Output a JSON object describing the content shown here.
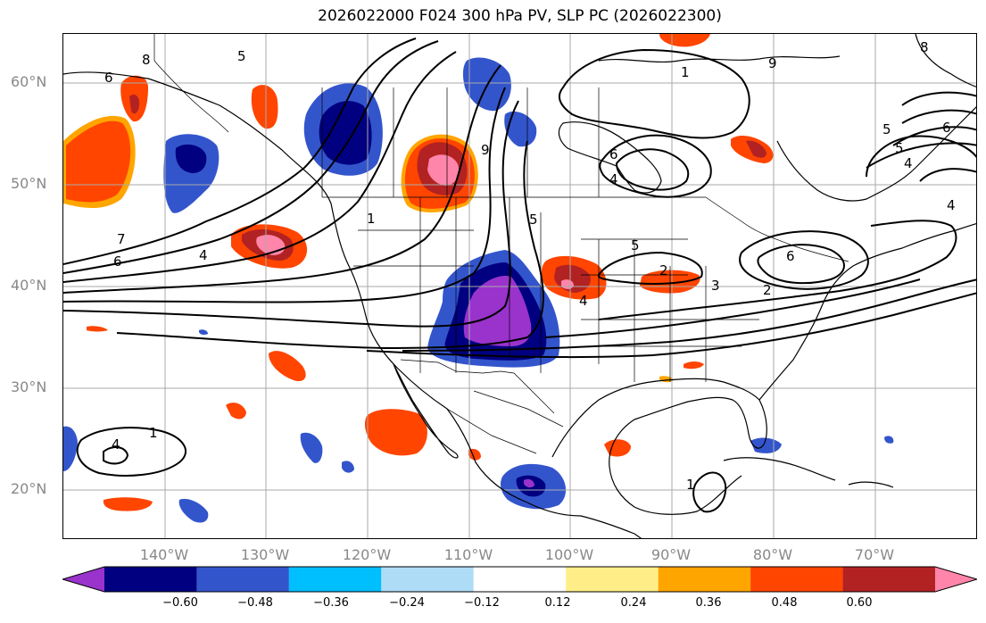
{
  "title": "2026022000 F024 300 hPa PV, SLP PC (2026022300)",
  "lat_labels": [
    "60°N",
    "50°N",
    "40°N",
    "30°N",
    "20°N"
  ],
  "lon_labels": [
    "140°W",
    "130°W",
    "120°W",
    "110°W",
    "100°W",
    "90°W",
    "80°W",
    "70°W"
  ],
  "colorbar": {
    "colors": [
      "#9933cc",
      "#000080",
      "#3355cc",
      "#00bfff",
      "#aedcf7",
      "#ffffff",
      "#ffee88",
      "#ffa500",
      "#ff4500",
      "#b22222",
      "#ff85aa"
    ],
    "ticks": [
      "−0.60",
      "−0.48",
      "−0.36",
      "−0.24",
      "−0.12",
      "0.12",
      "0.24",
      "0.36",
      "0.48",
      "0.60"
    ]
  },
  "contour_labels": [
    "5",
    "6",
    "8",
    "7",
    "6",
    "4",
    "1",
    "9",
    "6",
    "4",
    "5",
    "5",
    "6",
    "4",
    "3",
    "2",
    "1",
    "9",
    "5",
    "4",
    "1",
    "4",
    "6",
    "8",
    "5",
    "4",
    "2",
    "1"
  ],
  "colors": {
    "pv_pos_core": "#ff85aa",
    "pv_pos_dark": "#b22222",
    "pv_pos": "#ff4500",
    "pv_pos_edge": "#ffa500",
    "pv_neg_core": "#9933cc",
    "pv_neg_dark": "#000080",
    "pv_neg": "#3355cc",
    "pv_neg_edge": "#00bfff",
    "grid": "#aaaaaa",
    "contour": "#000000"
  }
}
